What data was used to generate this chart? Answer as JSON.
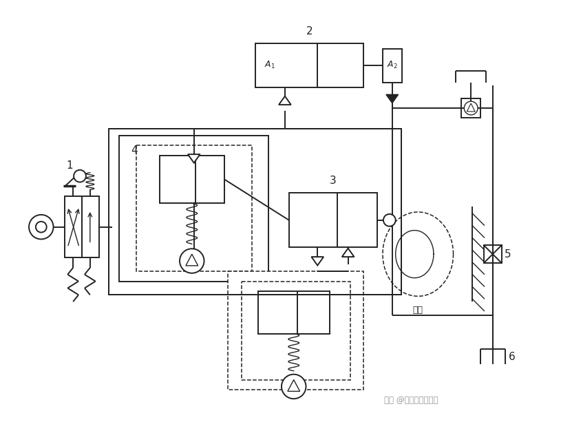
{
  "bg_color": "#ffffff",
  "line_color": "#222222",
  "lw": 1.4,
  "lw_thin": 1.0,
  "watermark": "知乎 @机械结构标教章"
}
